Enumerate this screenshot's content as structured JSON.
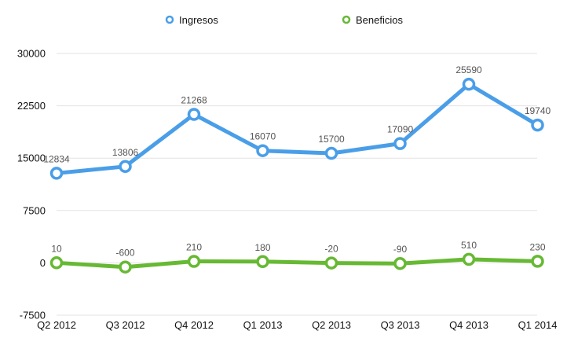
{
  "chart_data": {
    "type": "line",
    "categories": [
      "Q2 2012",
      "Q3 2012",
      "Q4 2012",
      "Q1 2013",
      "Q2 2013",
      "Q3 2013",
      "Q4 2013",
      "Q1 2014"
    ],
    "series": [
      {
        "name": "Ingresos",
        "color": "#4a9ee8",
        "values": [
          12834,
          13806,
          21268,
          16070,
          15700,
          17090,
          25590,
          19740
        ]
      },
      {
        "name": "Beneficios",
        "color": "#67b934",
        "values": [
          10,
          -600,
          210,
          180,
          -20,
          -90,
          510,
          230
        ]
      }
    ],
    "yticks": [
      -7500,
      0,
      7500,
      15000,
      22500,
      30000
    ],
    "ylim": [
      -7500,
      30000
    ],
    "grid": true,
    "legend_position": "top-center",
    "data_labels": true,
    "title": "",
    "xlabel": "",
    "ylabel": ""
  }
}
